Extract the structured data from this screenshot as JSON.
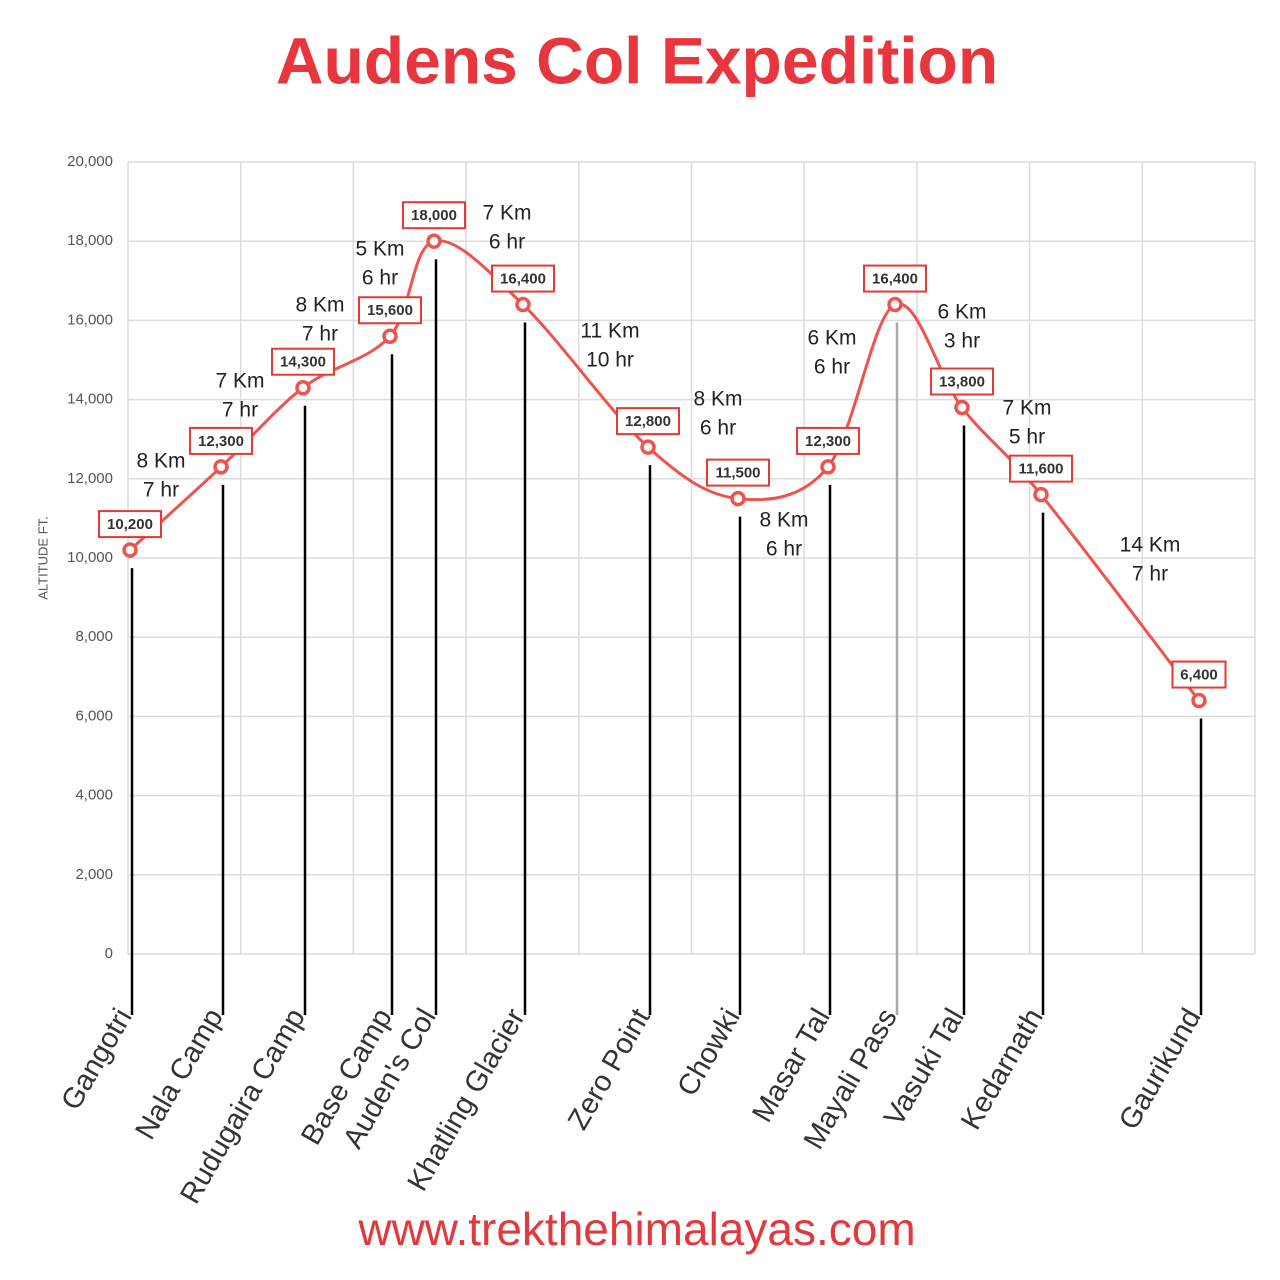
{
  "chart_data": {
    "type": "line",
    "title": "Audens Col Expedition",
    "y_label": "ALTITUDE FT.",
    "footer": "www.trekthehimalayas.com",
    "color": "#ef5350",
    "categories": [
      "Gangotri",
      "Nala Camp",
      "Rudugaira Camp",
      "Base Camp",
      "Auden's Col",
      "Khatling Glacier",
      "Zero Point",
      "Chowki",
      "Masar Tal",
      "Mayali Pass",
      "Vasuki Tal",
      "Kedarnath",
      "Gaurikund"
    ],
    "values": [
      10200,
      12300,
      14300,
      15600,
      18000,
      16400,
      12800,
      11500,
      12300,
      16400,
      13800,
      11600,
      6400
    ],
    "value_labels": [
      "10,200",
      "12,300",
      "14,300",
      "15,600",
      "18,000",
      "16,400",
      "12,800",
      "11,500",
      "12,300",
      "16,400",
      "13,800",
      "11,600",
      "6,400"
    ],
    "segments": [
      {
        "distance": "8 Km",
        "time": "7 hr"
      },
      {
        "distance": "7 Km",
        "time": "7 hr"
      },
      {
        "distance": "8 Km",
        "time": "7 hr"
      },
      {
        "distance": "5 Km",
        "time": "6 hr"
      },
      {
        "distance": "7 Km",
        "time": "6 hr"
      },
      {
        "distance": "11 Km",
        "time": "10 hr"
      },
      {
        "distance": "8 Km",
        "time": "6 hr"
      },
      {
        "distance": "8 Km",
        "time": "6 hr"
      },
      {
        "distance": "6 Km",
        "time": "6 hr"
      },
      {
        "distance": "6 Km",
        "time": "3 hr"
      },
      {
        "distance": "7 Km",
        "time": "5 hr"
      },
      {
        "distance": "14 Km",
        "time": "7 hr"
      }
    ],
    "ylim": [
      0,
      20000
    ],
    "yticks": [
      0,
      {
        "value": 2000,
        "label": "2,000"
      },
      {
        "value": 4000,
        "label": "4,000"
      },
      {
        "value": 6000,
        "label": "6,000"
      },
      {
        "value": 8000,
        "label": "8,000"
      },
      {
        "value": 10000,
        "label": "10,000"
      },
      {
        "value": 12000,
        "label": "12,000"
      },
      {
        "value": 14000,
        "label": "14,000"
      },
      {
        "value": 16000,
        "label": "16,000"
      },
      {
        "value": 18000,
        "label": "18,000"
      },
      {
        "value": 20000,
        "label": "20,000"
      }
    ],
    "grid": true
  }
}
